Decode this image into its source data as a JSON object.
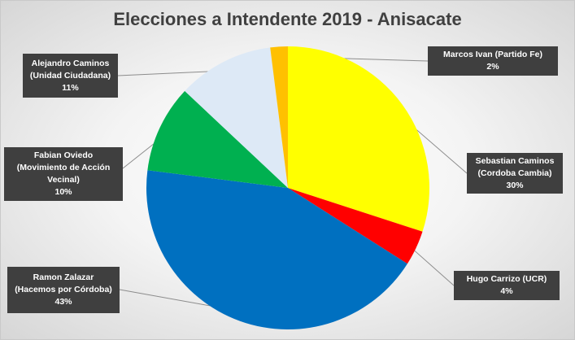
{
  "chart_data": {
    "type": "pie",
    "title": "Elecciones a Intendente 2019 - Anisacate",
    "start_angle_deg": 0,
    "direction": "clockwise",
    "legend": "none",
    "slices": [
      {
        "key": "sebastian",
        "name_line1": "Sebastian Caminos",
        "name_line2": "(Cordoba Cambia)",
        "value": 30,
        "label": "30%",
        "color": "#ffff00"
      },
      {
        "key": "hugo",
        "name_line1": "Hugo Carrizo (UCR)",
        "value": 4,
        "label": "4%",
        "color": "#ff0000"
      },
      {
        "key": "ramon",
        "name_line1": "Ramon Zalazar",
        "name_line2": "(Hacemos por Córdoba)",
        "value": 43,
        "label": "43%",
        "color": "#0070c0"
      },
      {
        "key": "fabian",
        "name_line1": "Fabian Oviedo",
        "name_line2": "(Movimiento de Acción",
        "name_line3": "Vecinal)",
        "value": 10,
        "label": "10%",
        "color": "#00b050"
      },
      {
        "key": "alejandro",
        "name_line1": "Alejandro Caminos",
        "name_line2": "(Unidad Ciudadana)",
        "value": 11,
        "label": "11%",
        "color": "#dde9f6"
      },
      {
        "key": "marcos",
        "name_line1": "Marcos Ivan (Partido Fe)",
        "value": 2,
        "label": "2%",
        "color": "#ffc000"
      }
    ]
  }
}
